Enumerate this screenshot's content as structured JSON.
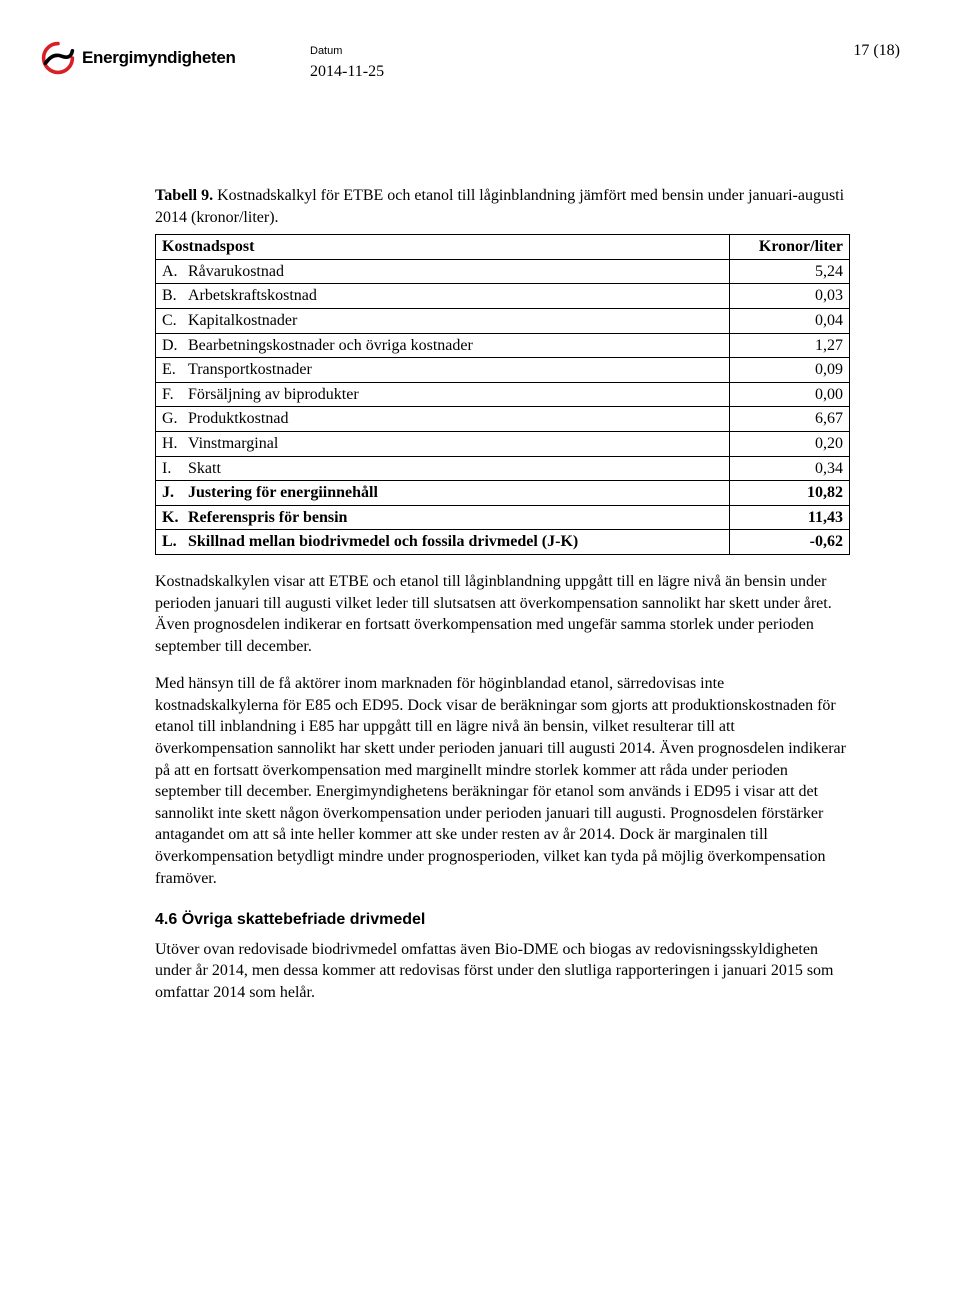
{
  "header": {
    "logo_text": "Energimyndigheten",
    "datum_label": "Datum",
    "datum_value": "2014-11-25",
    "page_number": "17 (18)"
  },
  "table": {
    "title_bold": "Tabell 9.",
    "title_rest": " Kostnadskalkyl för ETBE och etanol till låginblandning jämfört med bensin under januari-augusti 2014 (kronor/liter).",
    "header_left": "Kostnadspost",
    "header_right": "Kronor/liter",
    "rows": [
      {
        "letter": "A.",
        "label": "Råvarukostnad",
        "value": "5,24",
        "bold": false
      },
      {
        "letter": "B.",
        "label": "Arbetskraftskostnad",
        "value": "0,03",
        "bold": false
      },
      {
        "letter": "C.",
        "label": "Kapitalkostnader",
        "value": "0,04",
        "bold": false
      },
      {
        "letter": "D.",
        "label": "Bearbetningskostnader och övriga kostnader",
        "value": "1,27",
        "bold": false
      },
      {
        "letter": "E.",
        "label": "Transportkostnader",
        "value": "0,09",
        "bold": false
      },
      {
        "letter": "F.",
        "label": "Försäljning av biprodukter",
        "value": "0,00",
        "bold": false
      },
      {
        "letter": "G.",
        "label": "Produktkostnad",
        "value": "6,67",
        "bold": false
      },
      {
        "letter": "H.",
        "label": "Vinstmarginal",
        "value": "0,20",
        "bold": false
      },
      {
        "letter": "I.",
        "label": "Skatt",
        "value": "0,34",
        "bold": false
      },
      {
        "letter": "J.",
        "label": "Justering för energiinnehåll",
        "value": "10,82",
        "bold": true
      },
      {
        "letter": "K.",
        "label": "Referenspris för bensin",
        "value": "11,43",
        "bold": true
      },
      {
        "letter": "L.",
        "label": "Skillnad mellan biodrivmedel och fossila drivmedel (J-K)",
        "value": "-0,62",
        "bold": true
      }
    ]
  },
  "paragraphs": {
    "p1": "Kostnadskalkylen visar att ETBE och etanol till låginblandning uppgått till en lägre nivå än bensin under perioden januari till augusti vilket leder till slutsatsen att överkompensation sannolikt har skett under året. Även prognosdelen indikerar en fortsatt överkompensation med ungefär samma storlek under perioden september till december.",
    "p2": "Med hänsyn till de få aktörer inom marknaden för höginblandad etanol, särredovisas inte kostnadskalkylerna för E85 och ED95. Dock visar de beräkningar som gjorts att produktionskostnaden för etanol till inblandning i E85 har uppgått till en lägre nivå än bensin, vilket resulterar till att överkompensation sannolikt har skett under perioden januari till augusti 2014. Även prognosdelen indikerar på att en fortsatt överkompensation med marginellt mindre storlek kommer att råda under perioden september till december. Energimyndighetens beräkningar för etanol som används i ED95 i visar att det sannolikt inte skett någon överkompensation under perioden januari till augusti. Prognosdelen förstärker antagandet om att så inte heller kommer att ske under resten av år 2014. Dock är marginalen till överkompensation betydligt mindre under prognosperioden, vilket kan tyda på möjlig överkompensation framöver.",
    "heading": "4.6 Övriga skattebefriade drivmedel",
    "p3": "Utöver ovan redovisade biodrivmedel omfattas även Bio-DME och biogas av redovisningsskyldigheten under år 2014, men dessa kommer att redovisas först under den slutliga rapporteringen i januari 2015 som omfattar 2014 som helår."
  },
  "colors": {
    "text": "#000000",
    "background": "#ffffff",
    "logo_red": "#d81f26",
    "logo_black": "#000000"
  }
}
